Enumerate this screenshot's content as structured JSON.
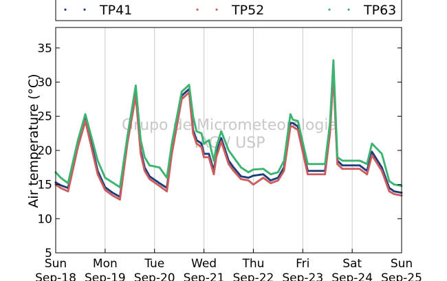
{
  "chart_data": {
    "type": "scatter",
    "title": "",
    "xlabel": "",
    "ylabel": "Air temperature (°C)",
    "ylim": [
      5,
      38
    ],
    "yticks": [
      5,
      10,
      15,
      20,
      25,
      30,
      35
    ],
    "xlim_days": [
      0,
      7
    ],
    "xtick_labels": [
      {
        "day": "Sun",
        "date": "Sep-18"
      },
      {
        "day": "Mon",
        "date": "Sep-19"
      },
      {
        "day": "Tue",
        "date": "Sep-20"
      },
      {
        "day": "Wed",
        "date": "Sep-21"
      },
      {
        "day": "Thu",
        "date": "Sep-22"
      },
      {
        "day": "Fri",
        "date": "Sep-23"
      },
      {
        "day": "Sat",
        "date": "Sep-24"
      },
      {
        "day": "Sun",
        "date": "Sep-25"
      }
    ],
    "grid": "vertical",
    "legend_position": "top",
    "watermark": [
      "Grupo de Micrometeorologia",
      "IAG / USP"
    ],
    "time_points": [
      0,
      0.1,
      0.25,
      0.45,
      0.6,
      0.85,
      1.0,
      1.15,
      1.3,
      1.45,
      1.62,
      1.72,
      1.8,
      1.9,
      2.1,
      2.25,
      2.35,
      2.55,
      2.7,
      2.78,
      2.85,
      2.95,
      3.0,
      3.1,
      3.2,
      3.25,
      3.35,
      3.5,
      3.6,
      3.75,
      3.9,
      4.0,
      4.2,
      4.35,
      4.5,
      4.62,
      4.75,
      4.8,
      4.9,
      5.1,
      5.35,
      5.45,
      5.55,
      5.62,
      5.7,
      5.8,
      6.0,
      6.15,
      6.3,
      6.4,
      6.6,
      6.75,
      6.85,
      7.0
    ],
    "series": [
      {
        "name": "TP41",
        "color": "#1f3d7a",
        "values": [
          15.3,
          14.9,
          14.5,
          21.0,
          24.8,
          17.0,
          14.6,
          13.8,
          13.2,
          21.5,
          28.6,
          20.0,
          17.5,
          16.2,
          15.2,
          14.5,
          20.0,
          28.0,
          29.0,
          23.0,
          21.5,
          21.0,
          19.5,
          19.5,
          17.0,
          19.5,
          21.8,
          18.5,
          17.5,
          16.2,
          16.0,
          16.3,
          16.5,
          15.6,
          16.0,
          17.5,
          24.0,
          24.0,
          23.5,
          17.0,
          17.0,
          17.0,
          23.0,
          31.5,
          18.5,
          17.8,
          17.8,
          17.8,
          17.0,
          19.8,
          17.5,
          14.5,
          14.0,
          13.8
        ]
      },
      {
        "name": "TP52",
        "color": "#cd5c5c",
        "values": [
          15.0,
          14.5,
          14.0,
          20.5,
          24.3,
          16.5,
          14.2,
          13.4,
          12.8,
          21.0,
          28.0,
          19.5,
          17.0,
          15.8,
          14.8,
          14.0,
          19.5,
          27.5,
          28.5,
          22.5,
          21.0,
          20.5,
          19.0,
          19.0,
          16.5,
          19.0,
          21.3,
          18.0,
          17.0,
          15.8,
          15.6,
          15.0,
          16.0,
          15.2,
          15.6,
          17.0,
          23.5,
          23.5,
          23.0,
          16.5,
          16.5,
          16.5,
          22.5,
          31.0,
          18.0,
          17.3,
          17.3,
          17.3,
          16.5,
          19.3,
          17.0,
          14.0,
          13.6,
          13.4
        ]
      },
      {
        "name": "TP63",
        "color": "#3cb371",
        "values": [
          16.8,
          16.0,
          15.2,
          21.5,
          25.3,
          18.5,
          16.0,
          15.3,
          14.6,
          22.0,
          29.5,
          21.5,
          19.0,
          17.8,
          17.5,
          16.0,
          21.0,
          28.6,
          29.6,
          25.0,
          22.8,
          22.5,
          21.0,
          21.5,
          18.5,
          20.5,
          22.8,
          20.0,
          19.0,
          17.5,
          16.8,
          17.2,
          17.3,
          16.5,
          16.8,
          18.5,
          25.3,
          24.5,
          24.3,
          18.0,
          18.0,
          18.0,
          24.0,
          33.2,
          19.0,
          18.5,
          18.5,
          18.5,
          18.0,
          21.0,
          19.5,
          15.5,
          15.0,
          14.8
        ]
      }
    ]
  }
}
